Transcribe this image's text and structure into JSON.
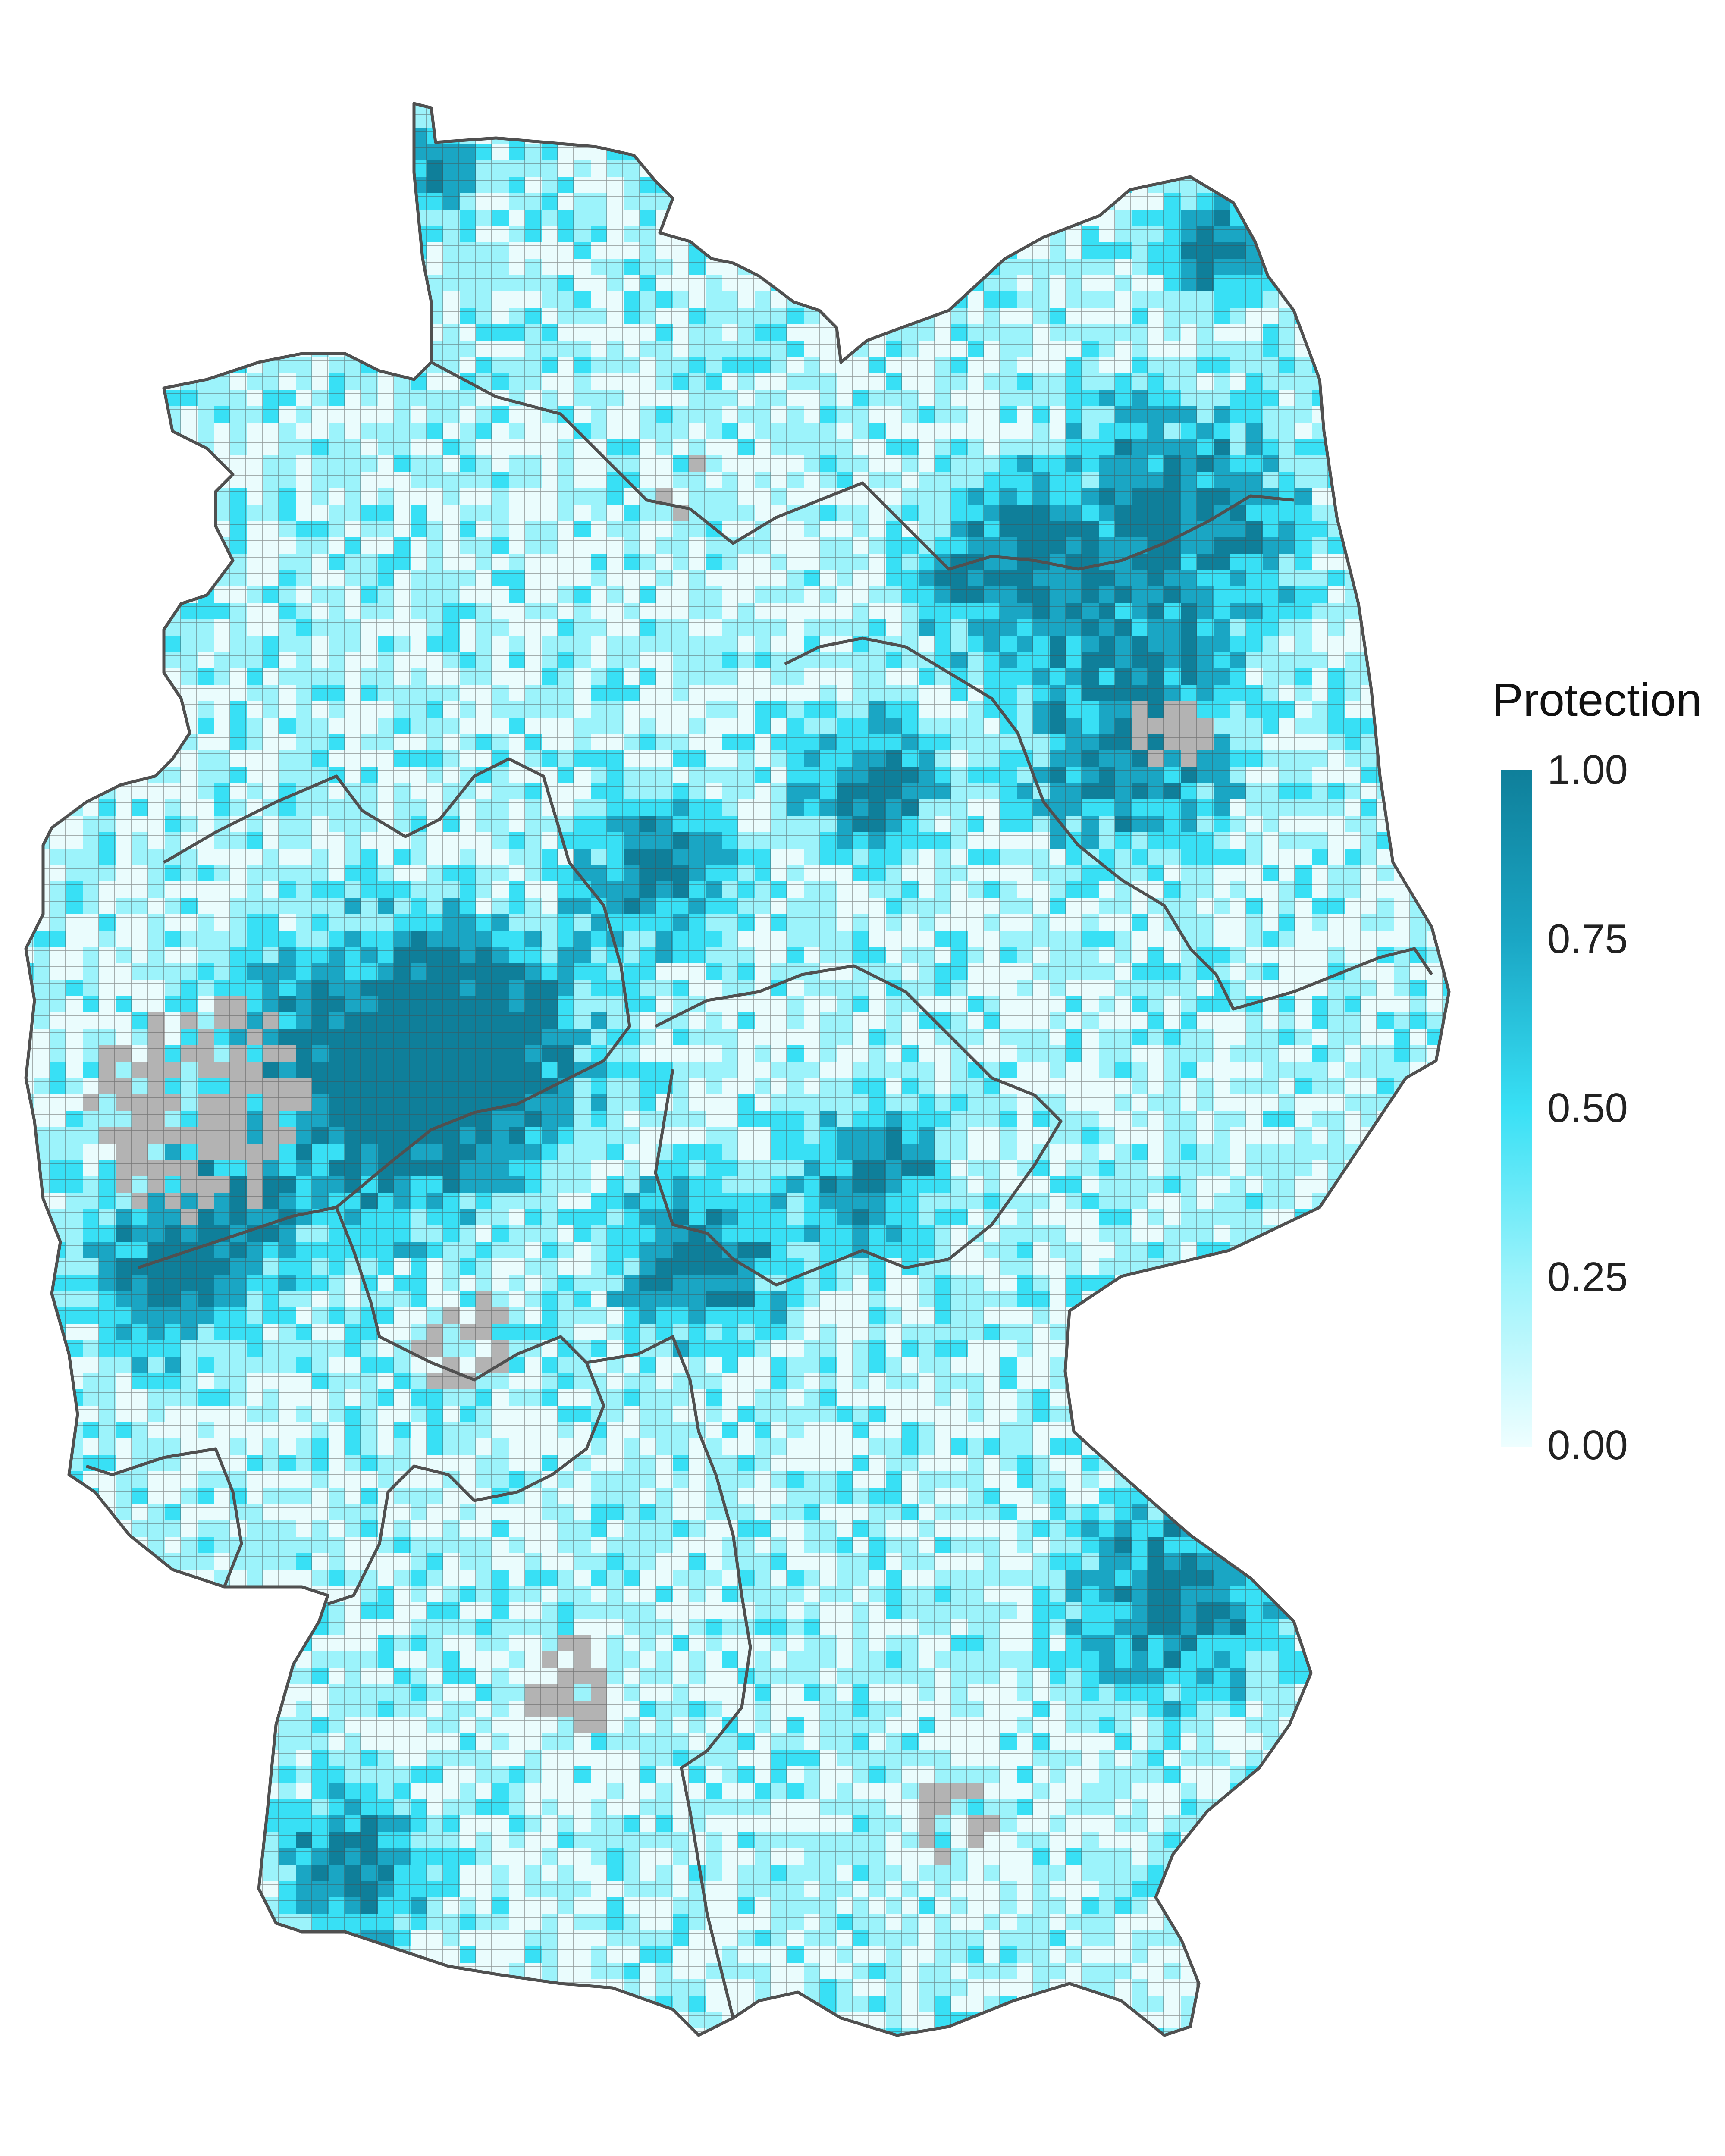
{
  "legend": {
    "title": "Protection",
    "ticks": [
      "1.00",
      "0.75",
      "0.50",
      "0.25",
      "0.00"
    ],
    "colors": {
      "high": "#0f7f9a",
      "mid_high": "#1aa6c4",
      "mid": "#38e0f5",
      "mid_low": "#9cf3fb",
      "low": "#eefeff",
      "no_data": "#b3b3b3"
    }
  },
  "map": {
    "subject": "Germany grid cells colored by protection level",
    "border_color": "#505050"
  }
}
